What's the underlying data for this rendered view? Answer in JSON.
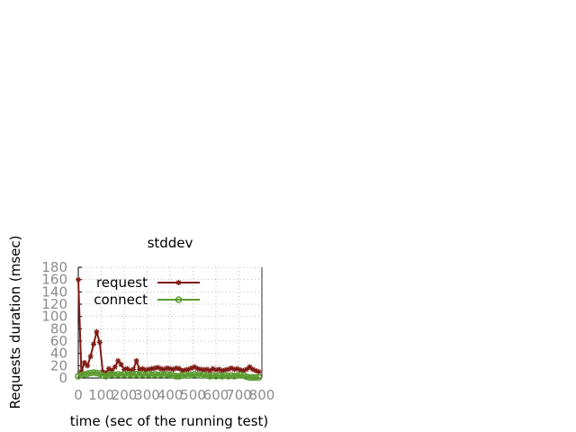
{
  "chart_data": {
    "type": "line",
    "title": "stddev",
    "xlabel": "time (sec of the running test)",
    "ylabel": "Requests duration (msec)",
    "xlim": [
      0,
      300
    ],
    "ylim": [
      0,
      180
    ],
    "xticks": [
      0,
      100,
      200,
      300,
      400,
      500,
      600,
      700,
      800
    ],
    "yticks": [
      0,
      20,
      40,
      60,
      80,
      100,
      120,
      140,
      160,
      180
    ],
    "grid": true,
    "legend_position": "top-right",
    "series": [
      {
        "name": "request",
        "color": "#7f1a14",
        "marker": "star",
        "x": [
          0,
          5,
          10,
          15,
          20,
          25,
          30,
          35,
          40,
          45,
          50,
          55,
          60,
          65,
          70,
          75,
          80,
          85,
          90,
          95,
          100,
          105,
          110,
          115,
          120,
          125,
          130,
          135,
          140,
          145,
          150,
          155,
          160,
          165,
          170,
          175,
          180,
          185,
          190,
          195,
          200,
          205,
          210,
          215,
          220,
          225,
          230,
          235,
          240,
          245,
          250,
          255,
          260,
          265,
          270,
          275,
          280,
          285,
          290,
          295
        ],
        "y": [
          160,
          10,
          25,
          20,
          35,
          55,
          75,
          58,
          10,
          8,
          15,
          12,
          18,
          28,
          22,
          14,
          15,
          12,
          14,
          28,
          14,
          15,
          13,
          14,
          15,
          16,
          17,
          15,
          14,
          16,
          15,
          14,
          16,
          15,
          12,
          13,
          14,
          16,
          18,
          15,
          14,
          13,
          14,
          12,
          15,
          13,
          14,
          12,
          13,
          14,
          16,
          14,
          15,
          13,
          12,
          14,
          18,
          14,
          12,
          10
        ]
      },
      {
        "name": "connect",
        "color": "#5a9a2f",
        "marker": "circle",
        "x": [
          0,
          5,
          10,
          15,
          20,
          25,
          30,
          35,
          40,
          45,
          50,
          55,
          60,
          65,
          70,
          75,
          80,
          85,
          90,
          95,
          100,
          105,
          110,
          115,
          120,
          125,
          130,
          135,
          140,
          145,
          150,
          155,
          160,
          165,
          170,
          175,
          180,
          185,
          190,
          195,
          200,
          205,
          210,
          215,
          220,
          225,
          230,
          235,
          240,
          245,
          250,
          255,
          260,
          265,
          270,
          275,
          280,
          285,
          290,
          295
        ],
        "y": [
          3,
          5,
          6,
          7,
          8,
          9,
          8,
          7,
          4,
          3,
          5,
          6,
          5,
          6,
          5,
          6,
          5,
          6,
          5,
          6,
          5,
          6,
          5,
          6,
          5,
          6,
          5,
          6,
          5,
          6,
          5,
          4,
          3,
          3,
          4,
          5,
          4,
          5,
          6,
          5,
          4,
          5,
          4,
          3,
          4,
          3,
          4,
          3,
          4,
          3,
          4,
          3,
          4,
          5,
          4,
          2,
          1,
          1,
          1,
          1
        ]
      }
    ]
  }
}
